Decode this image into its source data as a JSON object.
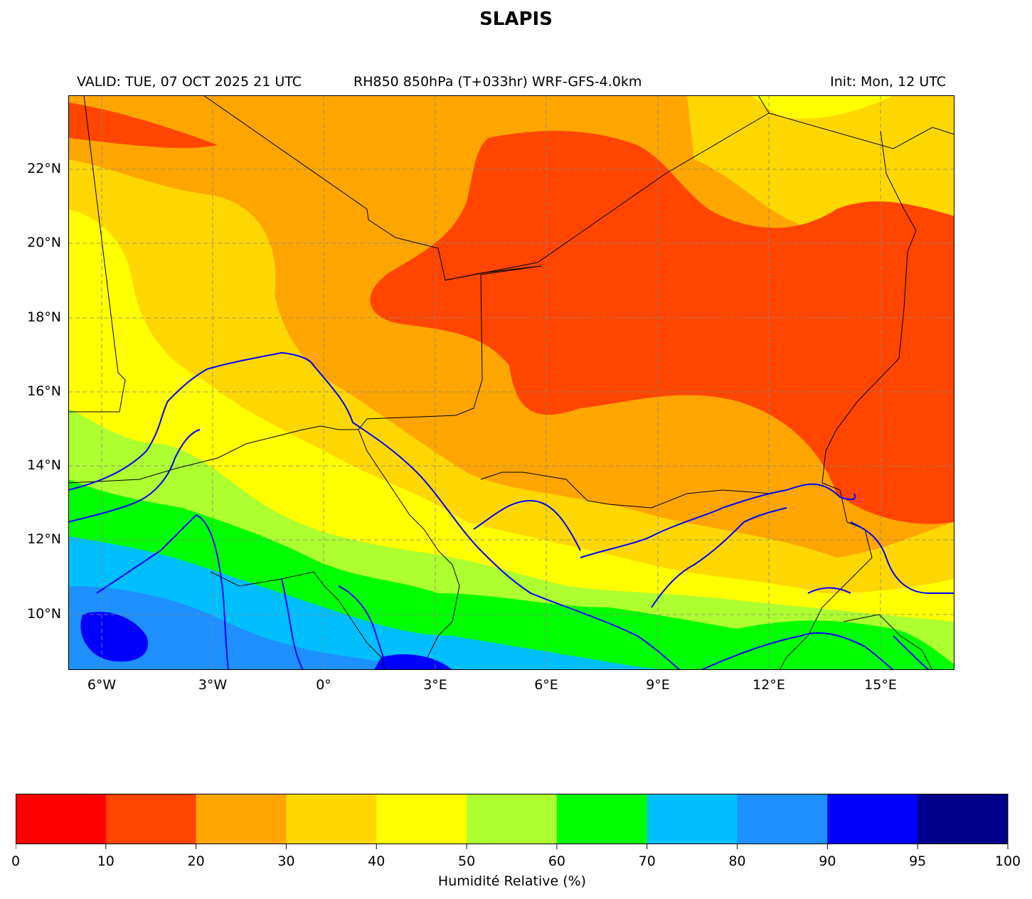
{
  "title": "SLAPIS",
  "header": {
    "valid": "VALID: TUE, 07 OCT 2025 21 UTC",
    "field": "RH850 850hPa (T+033hr) WRF-GFS-4.0km",
    "init": "Init: Mon, 12 UTC"
  },
  "map": {
    "lon_range": [
      -7,
      17
    ],
    "lat_range": [
      8.5,
      24
    ],
    "lon_ticks": [
      "6°W",
      "3°W",
      "0°",
      "3°E",
      "6°E",
      "9°E",
      "12°E",
      "15°E"
    ],
    "lat_ticks": [
      "22°N",
      "20°N",
      "18°N",
      "16°N",
      "14°N",
      "12°N",
      "10°N"
    ],
    "river_color": "#0000ff",
    "border_color": "#000000",
    "grid": "dashed gray"
  },
  "colorbar": {
    "label": "Humidité Relative (%)",
    "ticks": [
      "0",
      "10",
      "20",
      "30",
      "40",
      "50",
      "60",
      "70",
      "80",
      "90",
      "95",
      "100"
    ],
    "colors": [
      "#ff0000",
      "#ff4500",
      "#ffa500",
      "#ffd700",
      "#ffff00",
      "#adff2f",
      "#00ff00",
      "#00bfff",
      "#1e90ff",
      "#0000ff",
      "#00008b"
    ]
  }
}
